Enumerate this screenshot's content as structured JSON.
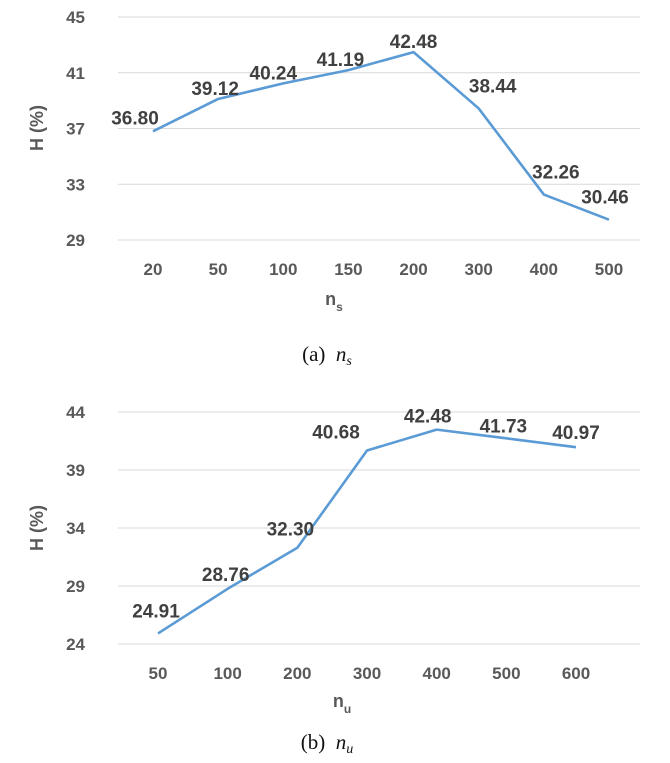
{
  "chart_data": [
    {
      "type": "line",
      "title": "",
      "xlabel": "n",
      "xlabel_sub": "s",
      "ylabel": "H (%)",
      "categories": [
        "20",
        "50",
        "100",
        "150",
        "200",
        "300",
        "400",
        "500"
      ],
      "values": [
        36.8,
        39.12,
        40.24,
        41.19,
        42.48,
        38.44,
        32.26,
        30.46
      ],
      "data_labels": [
        "36.80",
        "39.12",
        "40.24",
        "41.19",
        "42.48",
        "38.44",
        "32.26",
        "30.46"
      ],
      "yticks": [
        29,
        33,
        37,
        41,
        45
      ],
      "ytick_labels": [
        "29",
        "33",
        "37",
        "41",
        "45"
      ],
      "ylim": [
        29,
        45
      ],
      "grid": true,
      "caption": {
        "label": "(a)",
        "var": "n",
        "sub": "s"
      }
    },
    {
      "type": "line",
      "title": "",
      "xlabel": "n",
      "xlabel_sub": "u",
      "ylabel": "H (%)",
      "categories": [
        "50",
        "100",
        "200",
        "300",
        "400",
        "500",
        "600"
      ],
      "values": [
        24.91,
        28.76,
        32.3,
        40.68,
        42.48,
        41.73,
        40.97
      ],
      "data_labels": [
        "24.91",
        "28.76",
        "32.30",
        "40.68",
        "42.48",
        "41.73",
        "40.97"
      ],
      "yticks": [
        24,
        29,
        34,
        39,
        44
      ],
      "ytick_labels": [
        "24",
        "29",
        "34",
        "39",
        "44"
      ],
      "ylim": [
        24,
        44
      ],
      "grid": true,
      "caption": {
        "label": "(b)",
        "var": "n",
        "sub": "u"
      }
    }
  ],
  "colors": {
    "series": "#5b9bd5",
    "grid": "#d9d9d9"
  }
}
